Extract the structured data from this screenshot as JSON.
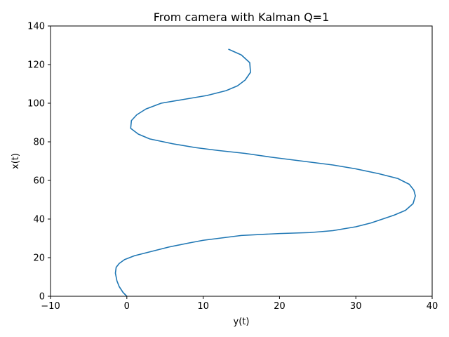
{
  "chart_data": {
    "type": "line",
    "title": "From camera with Kalman Q=1",
    "xlabel": "y(t)",
    "ylabel": "x(t)",
    "xlim": [
      -10,
      40
    ],
    "ylim": [
      0,
      140
    ],
    "xticks": [
      "−10",
      "0",
      "10",
      "20",
      "30",
      "40"
    ],
    "yticks": [
      "0",
      "20",
      "40",
      "60",
      "80",
      "100",
      "120",
      "140"
    ],
    "grid": false,
    "series": [
      {
        "color": "#1f77b4",
        "x": [
          0.0,
          -0.5,
          -1.0,
          -1.3,
          -1.5,
          -1.4,
          -1.0,
          -0.3,
          1.0,
          3.0,
          5.5,
          8.0,
          10.0,
          12.0,
          15.0,
          20.0,
          24.0,
          27.0,
          30.0,
          32.0,
          33.5,
          35.0,
          36.5,
          37.5,
          37.8,
          37.6,
          37.0,
          35.5,
          33.0,
          30.0,
          27.0,
          23.0,
          19.0,
          15.5,
          12.0,
          9.0,
          6.0,
          3.0,
          1.5,
          0.5,
          0.6,
          1.3,
          2.5,
          4.5,
          7.5,
          10.5,
          13.0,
          14.5,
          15.5,
          16.2,
          16.1,
          15.0,
          13.3
        ],
        "y": [
          0,
          2,
          5,
          8,
          12,
          15,
          17,
          19,
          21,
          23,
          25.5,
          27.5,
          29,
          30,
          31.5,
          32.5,
          33,
          34,
          36,
          38,
          40,
          42,
          44.5,
          48,
          52,
          55,
          58,
          61,
          63.5,
          66,
          68,
          70,
          72,
          74,
          75.5,
          77,
          79,
          81.5,
          84,
          87,
          91,
          94,
          97,
          100,
          102,
          104,
          106.5,
          109,
          112,
          116,
          121,
          125,
          128
        ]
      }
    ]
  }
}
